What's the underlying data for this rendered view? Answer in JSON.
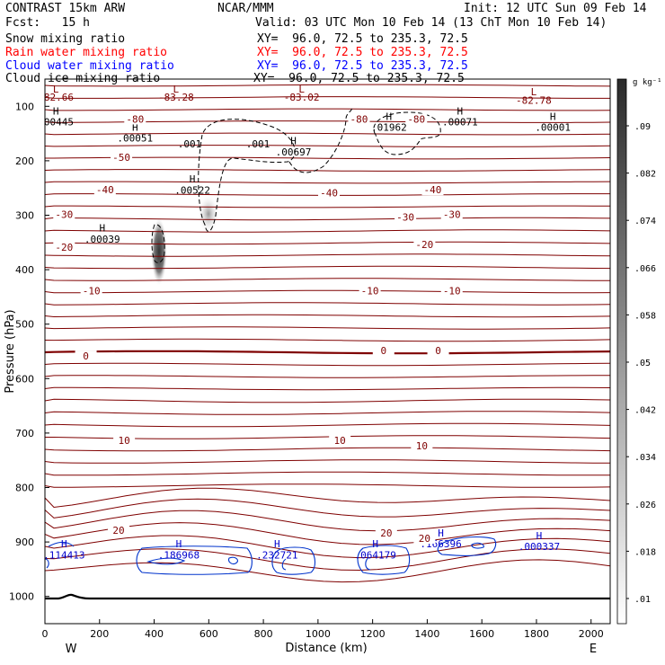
{
  "header": {
    "left_title": "CONTRAST 15km ARW",
    "center_title": "NCAR/MMM",
    "init": "Init: 12 UTC Sun 09 Feb 14",
    "fcst": "Fcst:   15 h",
    "valid": "Valid: 03 UTC Mon 10 Feb 14 (13 ChT Mon 10 Feb 14)",
    "fields": [
      {
        "name": "Snow mixing ratio",
        "xy": "XY=  96.0, 72.5 to 235.3, 72.5",
        "color": "#000000"
      },
      {
        "name": "Rain water mixing ratio",
        "xy": "XY=  96.0, 72.5 to 235.3, 72.5",
        "color": "#ff0000"
      },
      {
        "name": "Cloud water mixing ratio",
        "xy": "XY=  96.0, 72.5 to 235.3, 72.5",
        "color": "#0000ff"
      },
      {
        "name": "Cloud ice mixing ratio",
        "xy": "XY=  96.0, 72.5 to 235.3, 72.5",
        "color": "#000000"
      }
    ]
  },
  "chart_data": {
    "type": "contour cross-section",
    "xlabel": "Distance (km)",
    "ylabel": "Pressure (hPa)",
    "xlim": [
      0,
      2070
    ],
    "ylim": [
      1050,
      50
    ],
    "xticks": [
      0,
      200,
      400,
      600,
      800,
      1000,
      1200,
      1400,
      1600,
      1800,
      2000
    ],
    "yticks": [
      100,
      200,
      300,
      400,
      500,
      600,
      700,
      800,
      900,
      1000
    ],
    "x_end_labels": {
      "left": "W",
      "right": "E"
    },
    "colorbar": {
      "unit": "g kg⁻¹",
      "ticks": [
        ".01",
        ".018",
        ".026",
        ".034",
        ".042",
        ".05",
        ".058",
        ".066",
        ".074",
        ".082",
        ".09"
      ]
    },
    "temperature_contours": {
      "color": "#7f0000",
      "labels": [
        {
          "text": "-80",
          "x": 330,
          "p": 125
        },
        {
          "text": "-80",
          "x": 1150,
          "p": 125
        },
        {
          "text": "-80",
          "x": 1360,
          "p": 125
        },
        {
          "text": "-50",
          "x": 280,
          "p": 195
        },
        {
          "text": "-40",
          "x": 220,
          "p": 255
        },
        {
          "text": "-40",
          "x": 1040,
          "p": 260
        },
        {
          "text": "-40",
          "x": 1420,
          "p": 255
        },
        {
          "text": "-30",
          "x": 70,
          "p": 300
        },
        {
          "text": "-30",
          "x": 1320,
          "p": 305
        },
        {
          "text": "-30",
          "x": 1490,
          "p": 300
        },
        {
          "text": "-20",
          "x": 70,
          "p": 360
        },
        {
          "text": "-20",
          "x": 1390,
          "p": 355
        },
        {
          "text": "-10",
          "x": 170,
          "p": 440
        },
        {
          "text": "-10",
          "x": 1190,
          "p": 440
        },
        {
          "text": "-10",
          "x": 1490,
          "p": 440
        },
        {
          "text": "0",
          "x": 150,
          "p": 560
        },
        {
          "text": "0",
          "x": 1240,
          "p": 550
        },
        {
          "text": "0",
          "x": 1440,
          "p": 550
        },
        {
          "text": "10",
          "x": 290,
          "p": 715
        },
        {
          "text": "10",
          "x": 1080,
          "p": 715
        },
        {
          "text": "10",
          "x": 1380,
          "p": 725
        },
        {
          "text": "20",
          "x": 270,
          "p": 880
        },
        {
          "text": "20",
          "x": 1250,
          "p": 885
        },
        {
          "text": "20",
          "x": 1390,
          "p": 895
        }
      ]
    },
    "extrema_labels": [
      {
        "text": "L",
        "x": 40,
        "p": 75,
        "color": "#7f0000"
      },
      {
        "text": "-82.66",
        "x": 40,
        "p": 90,
        "color": "#7f0000"
      },
      {
        "text": "L",
        "x": 480,
        "p": 75,
        "color": "#7f0000"
      },
      {
        "text": "-83.28",
        "x": 480,
        "p": 90,
        "color": "#7f0000"
      },
      {
        "text": "L",
        "x": 940,
        "p": 75,
        "color": "#7f0000"
      },
      {
        "text": "-83.02",
        "x": 940,
        "p": 90,
        "color": "#7f0000"
      },
      {
        "text": "L",
        "x": 1790,
        "p": 80,
        "color": "#7f0000"
      },
      {
        "text": "-82.78",
        "x": 1790,
        "p": 95,
        "color": "#7f0000"
      },
      {
        "text": "H",
        "x": 40,
        "p": 115,
        "color": "#000000"
      },
      {
        "text": ".00445",
        "x": 40,
        "p": 135,
        "color": "#000000"
      },
      {
        "text": "H",
        "x": 330,
        "p": 145,
        "color": "#000000"
      },
      {
        "text": ".00051",
        "x": 330,
        "p": 165,
        "color": "#000000"
      },
      {
        "text": "H",
        "x": 1260,
        "p": 125,
        "color": "#000000"
      },
      {
        "text": ".01962",
        "x": 1260,
        "p": 145,
        "color": "#000000"
      },
      {
        "text": "H",
        "x": 1520,
        "p": 115,
        "color": "#000000"
      },
      {
        "text": ".00071",
        "x": 1520,
        "p": 135,
        "color": "#000000"
      },
      {
        "text": "H",
        "x": 1860,
        "p": 125,
        "color": "#000000"
      },
      {
        "text": ".00001",
        "x": 1860,
        "p": 145,
        "color": "#000000"
      },
      {
        "text": ".001",
        "x": 530,
        "p": 175,
        "color": "#000000"
      },
      {
        "text": ".001",
        "x": 780,
        "p": 175,
        "color": "#000000"
      },
      {
        "text": "H",
        "x": 910,
        "p": 170,
        "color": "#000000"
      },
      {
        "text": ".00697",
        "x": 910,
        "p": 190,
        "color": "#000000"
      },
      {
        "text": "H",
        "x": 540,
        "p": 240,
        "color": "#000000"
      },
      {
        "text": ".00522",
        "x": 540,
        "p": 260,
        "color": "#000000"
      },
      {
        "text": "H",
        "x": 210,
        "p": 330,
        "color": "#000000"
      },
      {
        "text": ".00039",
        "x": 210,
        "p": 350,
        "color": "#000000"
      },
      {
        "text": "H",
        "x": 70,
        "p": 910,
        "color": "#0000cd"
      },
      {
        "text": ".114413",
        "x": 70,
        "p": 930,
        "color": "#0000cd"
      },
      {
        "text": "H",
        "x": 490,
        "p": 910,
        "color": "#0000cd"
      },
      {
        "text": ".186968",
        "x": 490,
        "p": 930,
        "color": "#0000cd"
      },
      {
        "text": "H",
        "x": 850,
        "p": 910,
        "color": "#0000cd"
      },
      {
        "text": ".232721",
        "x": 850,
        "p": 930,
        "color": "#0000cd"
      },
      {
        "text": "H",
        "x": 1210,
        "p": 910,
        "color": "#0000cd"
      },
      {
        "text": ".064179",
        "x": 1210,
        "p": 930,
        "color": "#0000cd"
      },
      {
        "text": "H",
        "x": 1450,
        "p": 890,
        "color": "#0000cd"
      },
      {
        "text": ".166396",
        "x": 1450,
        "p": 910,
        "color": "#0000cd"
      },
      {
        "text": "H",
        "x": 1810,
        "p": 895,
        "color": "#0000cd"
      },
      {
        "text": ".000337",
        "x": 1810,
        "p": 915,
        "color": "#0000cd"
      }
    ]
  }
}
